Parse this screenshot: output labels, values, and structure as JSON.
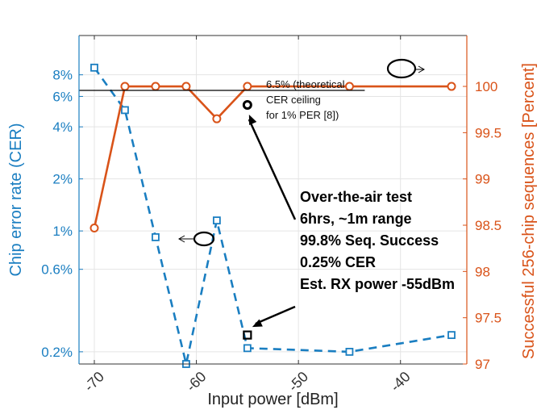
{
  "chart_data": {
    "type": "line",
    "xlabel": "Input power [dBm]",
    "ylabel_left": "Chip error rate (CER)",
    "ylabel_right": "Successful 256-chip sequences [Percent]",
    "xlim": [
      -71.5,
      -33.5
    ],
    "x_ticks": [
      -70,
      -60,
      -50,
      -40
    ],
    "x_tick_labels": [
      "-70",
      "-60",
      "-50",
      "-40"
    ],
    "left_axis": {
      "scale": "log",
      "ylim": [
        0.0017,
        0.135
      ],
      "ticks": [
        0.002,
        0.006,
        0.01,
        0.02,
        0.04,
        0.06,
        0.08
      ],
      "tick_labels": [
        "0.2%",
        "0.6%",
        "1%",
        "2%",
        "4%",
        "6%",
        "8%"
      ]
    },
    "right_axis": {
      "scale": "linear",
      "ylim": [
        97,
        100.55
      ],
      "ticks": [
        97,
        97.5,
        98,
        98.5,
        99,
        99.5,
        100
      ],
      "tick_labels": [
        "97",
        "97.5",
        "98",
        "98.5",
        "99",
        "99.5",
        "100"
      ]
    },
    "grid": true,
    "series": [
      {
        "axis": "left",
        "style": "dashed-square",
        "color": "#1a7ec1",
        "x": [
          -70,
          -67,
          -64,
          -61,
          -58,
          -55,
          -45,
          -35
        ],
        "y": [
          0.088,
          0.05,
          0.0092,
          0.0017,
          0.0115,
          0.0021,
          0.002,
          0.0025
        ]
      },
      {
        "axis": "right",
        "style": "solid-circle",
        "color": "#d95319",
        "x": [
          -70,
          -67,
          -64,
          -61,
          -58,
          -55,
          -45,
          -35
        ],
        "y": [
          98.47,
          100,
          100,
          100,
          99.65,
          100,
          100,
          100
        ]
      }
    ],
    "reference_line": {
      "y": 0.065,
      "x_start": -71.5,
      "x_end": -43.5
    },
    "reference_text": [
      "6.5% (theoretical",
      "CER ceiling",
      "for 1% PER [8])"
    ],
    "ota_point_cer": {
      "x": -55,
      "y": 0.0025
    },
    "ota_point_success": {
      "x": -55,
      "y": 99.8
    },
    "ota_text": [
      "Over-the-air test",
      "6hrs, ~1m range",
      "99.8% Seq. Success",
      "0.25% CER",
      "Est. RX power -55dBm"
    ]
  }
}
